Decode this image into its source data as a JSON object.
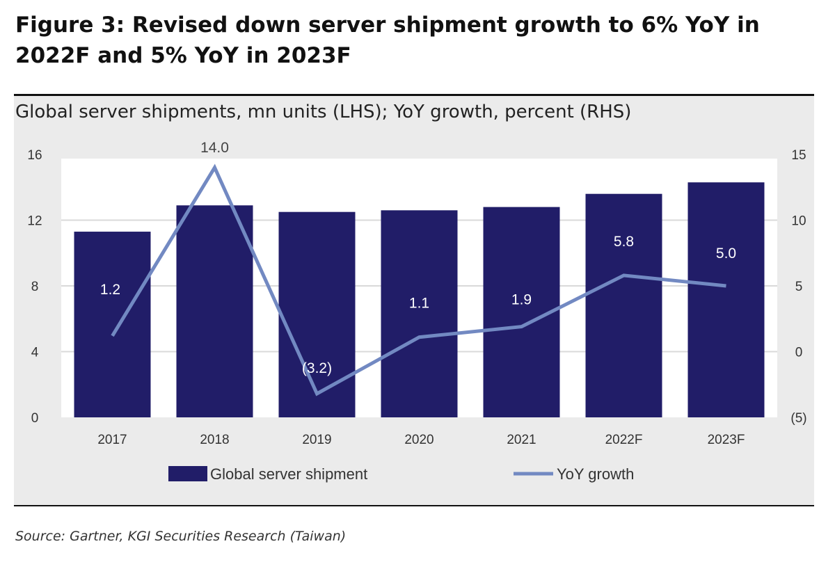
{
  "title": "Figure 3: Revised down server shipment growth to 6% YoY in 2022F and 5% YoY in 2023F",
  "source": "Source: Gartner, KGI Securities Research (Taiwan)",
  "chart_data": {
    "type": "bar",
    "subtitle": "Global server shipments, mn units (LHS); YoY growth, percent (RHS)",
    "categories": [
      "2017",
      "2018",
      "2019",
      "2020",
      "2021",
      "2022F",
      "2023F"
    ],
    "series": [
      {
        "name": "Global server shipment",
        "type": "bar",
        "axis": "left",
        "values": [
          11.3,
          12.9,
          12.5,
          12.6,
          12.8,
          13.6,
          14.3
        ],
        "color": "#211d68"
      },
      {
        "name": "YoY growth",
        "type": "line",
        "axis": "right",
        "values": [
          1.2,
          14.0,
          -3.2,
          1.1,
          1.9,
          5.8,
          5.0
        ],
        "labels": [
          "1.2",
          "14.0",
          "(3.2)",
          "1.1",
          "1.9",
          "5.8",
          "5.0"
        ],
        "color": "#7289c2"
      }
    ],
    "left_axis": {
      "range": [
        0,
        16
      ],
      "ticks": [
        "0",
        "4",
        "8",
        "12",
        "16"
      ]
    },
    "right_axis": {
      "range": [
        -5,
        15
      ],
      "ticks": [
        "(5)",
        "0",
        "5",
        "10",
        "15"
      ]
    },
    "grid": true,
    "legend": "bottom"
  }
}
